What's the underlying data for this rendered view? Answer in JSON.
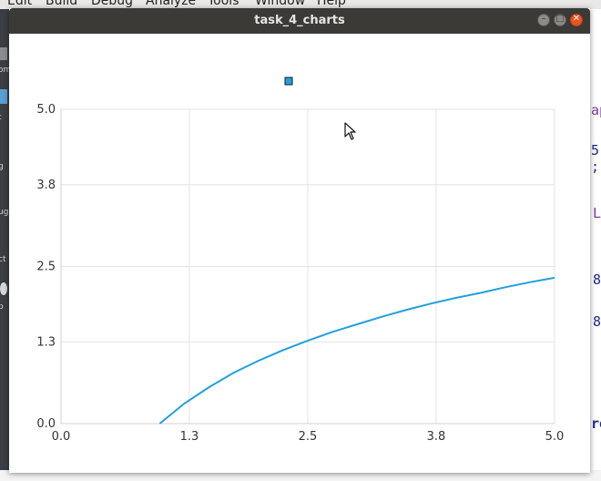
{
  "background": {
    "menu": [
      "Edit",
      "Build",
      "Debug",
      "Analyze",
      "Tools",
      "Window",
      "Help"
    ],
    "sidebar_labels": [
      "om",
      "t",
      "g",
      "ug",
      "ct",
      "p"
    ],
    "right_text": [
      "ap",
      "5 ;",
      "L",
      "8",
      "8",
      "ro"
    ]
  },
  "window": {
    "title": "task_4_charts",
    "controls": {
      "minimize_glyph": "–",
      "maximize_glyph": "□",
      "close_glyph": "✕"
    }
  },
  "chart_data": {
    "type": "line",
    "xlim": [
      0.0,
      5.0
    ],
    "ylim": [
      0.0,
      5.0
    ],
    "x_ticks": [
      "0.0",
      "1.3",
      "2.5",
      "3.8",
      "5.0"
    ],
    "y_ticks": [
      "0.0",
      "1.3",
      "2.5",
      "3.8",
      "5.0"
    ],
    "grid": true,
    "legend": "top-center",
    "series": [
      {
        "color": "#209fdf",
        "x": [
          1.0,
          1.25,
          1.5,
          1.75,
          2.0,
          2.25,
          2.5,
          2.75,
          3.0,
          3.25,
          3.5,
          3.75,
          4.0,
          4.25,
          4.5,
          4.75,
          5.0
        ],
        "y": [
          0.0,
          0.32,
          0.58,
          0.81,
          1.0,
          1.17,
          1.32,
          1.46,
          1.58,
          1.7,
          1.81,
          1.91,
          2.0,
          2.08,
          2.17,
          2.25,
          2.32
        ]
      }
    ],
    "colors": {
      "grid": "#e3e3e3",
      "axis": "#d0d0d0",
      "tick_label": "#333333"
    }
  }
}
